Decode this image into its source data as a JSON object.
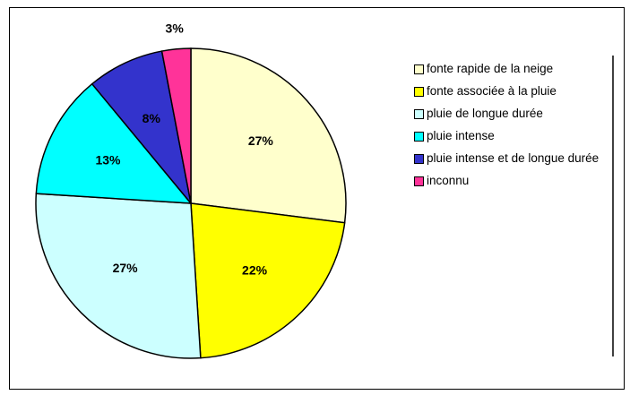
{
  "chart_data": {
    "type": "pie",
    "categories": [
      "fonte rapide de la neige",
      "fonte associée à la pluie",
      "pluie de longue durée",
      "pluie intense",
      "pluie intense et de longue durée",
      "inconnu"
    ],
    "values": [
      27,
      22,
      27,
      13,
      8,
      3
    ],
    "value_labels": [
      "27%",
      "22%",
      "27%",
      "13%",
      "8%",
      "3%"
    ],
    "colors": [
      "#ffffcc",
      "#ffff00",
      "#ccffff",
      "#00ffff",
      "#3333cc",
      "#ff3399"
    ]
  }
}
